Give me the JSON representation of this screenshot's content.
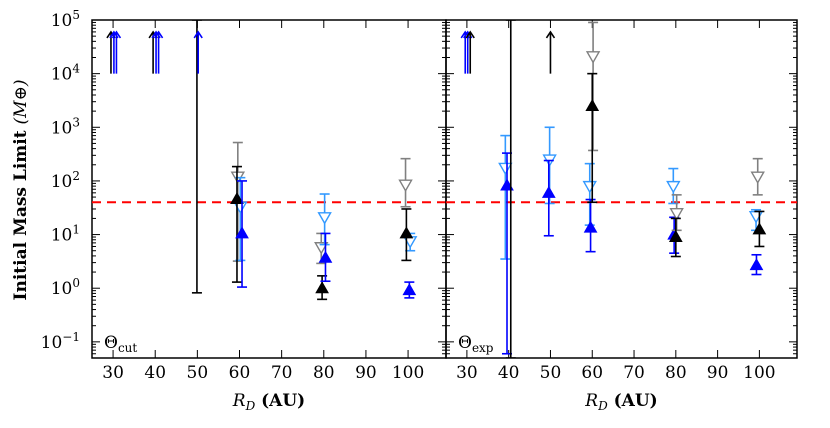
{
  "chart_data": {
    "type": "scatter",
    "ylabel": "Initial Mass Limit",
    "ylabel_unit": "M⊕",
    "yscale": "log",
    "ylim": [
      0.05,
      100000
    ],
    "y_ticks": [
      {
        "value": 0.1,
        "base": "10",
        "exp": "−1"
      },
      {
        "value": 1,
        "base": "10",
        "exp": "0"
      },
      {
        "value": 10,
        "base": "10",
        "exp": "1"
      },
      {
        "value": 100,
        "base": "10",
        "exp": "2"
      },
      {
        "value": 1000,
        "base": "10",
        "exp": "3"
      },
      {
        "value": 10000,
        "base": "10",
        "exp": "4"
      },
      {
        "value": 100000,
        "base": "10",
        "exp": "5"
      }
    ],
    "reference_line": {
      "y": 40,
      "color": "#ff0000",
      "style": "dashed"
    },
    "colors": {
      "black": "#000000",
      "blue": "#0000ff",
      "gray": "#808080",
      "lightblue": "#3399ff",
      "red": "#ff0000"
    },
    "panels": [
      {
        "label": "Θ",
        "label_sub": "cut",
        "xlabel": "R",
        "xlabel_sub": "D",
        "xlabel_unit": "(AU)",
        "xlim": [
          25,
          109
        ],
        "x_ticks": [
          "30",
          "40",
          "50",
          "60",
          "70",
          "80",
          "90",
          "100"
        ],
        "points": [
          {
            "x": 59.6,
            "y": 120,
            "low": 3.2,
            "high": 520,
            "marker": "tri_down_open",
            "color": "gray"
          },
          {
            "x": 60.2,
            "y": 33,
            "low": 3.3,
            "high": 115,
            "marker": "tri_down_open",
            "color": "lightblue"
          },
          {
            "x": 59.4,
            "y": 46,
            "low": 1.3,
            "high": 185,
            "marker": "tri_up",
            "color": "black"
          },
          {
            "x": 60.6,
            "y": 10.5,
            "low": 1.05,
            "high": 100,
            "marker": "tri_up",
            "color": "blue"
          },
          {
            "x": 79.4,
            "y": 5.8,
            "low": 2.9,
            "high": 10.5,
            "marker": "tri_down_open",
            "color": "gray"
          },
          {
            "x": 80.2,
            "y": 21,
            "low": 6.5,
            "high": 57,
            "marker": "tri_down_open",
            "color": "lightblue"
          },
          {
            "x": 79.6,
            "y": 1.0,
            "low": 0.62,
            "high": 1.7,
            "marker": "tri_up",
            "color": "black"
          },
          {
            "x": 80.4,
            "y": 3.7,
            "low": 1.35,
            "high": 10.5,
            "marker": "tri_up",
            "color": "blue"
          },
          {
            "x": 99.4,
            "y": 85,
            "low": 33,
            "high": 260,
            "marker": "tri_down_open",
            "color": "gray"
          },
          {
            "x": 100.5,
            "y": 7.5,
            "low": 5.0,
            "high": 10.5,
            "marker": "tri_down_open",
            "color": "lightblue"
          },
          {
            "x": 99.6,
            "y": 10.5,
            "low": 3.3,
            "high": 30,
            "marker": "tri_up",
            "color": "black"
          },
          {
            "x": 100.3,
            "y": 0.92,
            "low": 0.66,
            "high": 1.3,
            "marker": "tri_up",
            "color": "blue"
          },
          {
            "x": 49.9,
            "y": null,
            "low": 0.82,
            "high": 100000,
            "marker": "errbar_only",
            "color": "black"
          }
        ],
        "arrows": [
          {
            "x": 29.5,
            "from": 10000,
            "to": 60000,
            "color": "black"
          },
          {
            "x": 30.2,
            "from": 10000,
            "to": 60000,
            "color": "blue"
          },
          {
            "x": 30.8,
            "from": 10000,
            "to": 60000,
            "color": "blue"
          },
          {
            "x": 39.5,
            "from": 10000,
            "to": 60000,
            "color": "black"
          },
          {
            "x": 40.2,
            "from": 10000,
            "to": 60000,
            "color": "blue"
          },
          {
            "x": 40.8,
            "from": 10000,
            "to": 60000,
            "color": "blue"
          },
          {
            "x": 50.2,
            "from": 10000,
            "to": 60000,
            "color": "blue"
          }
        ]
      },
      {
        "label": "Θ",
        "label_sub": "exp",
        "xlabel": "R",
        "xlabel_sub": "D",
        "xlabel_unit": "(AU)",
        "xlim": [
          25,
          109
        ],
        "x_ticks": [
          "30",
          "40",
          "50",
          "60",
          "70",
          "80",
          "90",
          "100"
        ],
        "points": [
          {
            "x": 39.2,
            "y": 175,
            "low": 3.5,
            "high": 700,
            "marker": "tri_down_open",
            "color": "lightblue"
          },
          {
            "x": 39.6,
            "y": 82,
            "low": 0.06,
            "high": 330,
            "marker": "tri_up",
            "color": "blue"
          },
          {
            "x": 49.8,
            "y": 250,
            "low": 38,
            "high": 1000,
            "marker": "tri_down_open",
            "color": "lightblue"
          },
          {
            "x": 49.6,
            "y": 60,
            "low": 9.5,
            "high": 240,
            "marker": "tri_up",
            "color": "blue"
          },
          {
            "x": 59.4,
            "y": 80,
            "low": 15,
            "high": 210,
            "marker": "tri_down_open",
            "color": "lightblue"
          },
          {
            "x": 59.6,
            "y": 13.5,
            "low": 4.8,
            "high": 45,
            "marker": "tri_up",
            "color": "blue"
          },
          {
            "x": 60.2,
            "y": 21000,
            "low": 370,
            "high": 90000,
            "marker": "tri_down_open",
            "color": "gray"
          },
          {
            "x": 60.0,
            "y": 2500,
            "low": 40,
            "high": 10000,
            "marker": "tri_up",
            "color": "black"
          },
          {
            "x": 79.4,
            "y": 80,
            "low": 38,
            "high": 170,
            "marker": "tri_down_open",
            "color": "lightblue"
          },
          {
            "x": 79.6,
            "y": 10,
            "low": 4.5,
            "high": 21,
            "marker": "tri_up",
            "color": "blue"
          },
          {
            "x": 80.2,
            "y": 25,
            "low": 12,
            "high": 55,
            "marker": "tri_down_open",
            "color": "gray"
          },
          {
            "x": 80.0,
            "y": 9.0,
            "low": 3.9,
            "high": 20,
            "marker": "tri_up",
            "color": "black"
          },
          {
            "x": 99.6,
            "y": 120,
            "low": 55,
            "high": 260,
            "marker": "tri_down_open",
            "color": "gray"
          },
          {
            "x": 99.2,
            "y": 22,
            "low": 12,
            "high": 29,
            "marker": "tri_down_open",
            "color": "lightblue"
          },
          {
            "x": 100.0,
            "y": 12.5,
            "low": 6.0,
            "high": 27,
            "marker": "tri_up",
            "color": "black"
          },
          {
            "x": 99.3,
            "y": 2.7,
            "low": 1.8,
            "high": 4.2,
            "marker": "tri_up",
            "color": "blue"
          },
          {
            "x": 40.5,
            "y": null,
            "low": 0.05,
            "high": 100000,
            "marker": "errbar_only",
            "color": "black"
          }
        ],
        "arrows": [
          {
            "x": 29.6,
            "from": 10000,
            "to": 60000,
            "color": "blue"
          },
          {
            "x": 30.2,
            "from": 10000,
            "to": 60000,
            "color": "blue"
          },
          {
            "x": 30.8,
            "from": 10000,
            "to": 60000,
            "color": "black"
          },
          {
            "x": 50.0,
            "from": 10000,
            "to": 60000,
            "color": "black"
          }
        ]
      }
    ]
  }
}
